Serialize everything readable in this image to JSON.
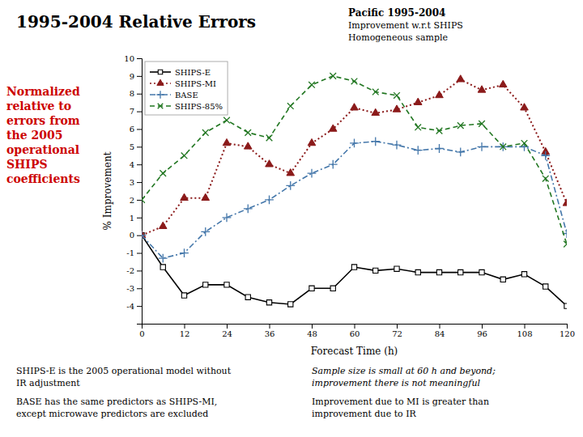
{
  "chart_data": {
    "type": "line",
    "title": "1995-2004 Relative Errors",
    "subtitle": [
      "Pacific 1995-2004",
      "Improvement w.r.t SHIPS",
      "Homogeneous sample"
    ],
    "x_label": "Forecast Time (h)",
    "y_label": "% Improvement",
    "x": [
      0,
      6,
      12,
      18,
      24,
      30,
      36,
      42,
      48,
      54,
      60,
      66,
      72,
      78,
      84,
      90,
      96,
      102,
      108,
      114,
      120
    ],
    "xlim": [
      0,
      120
    ],
    "xticks": [
      0,
      12,
      24,
      36,
      48,
      60,
      72,
      84,
      96,
      108,
      120
    ],
    "ylim": [
      -5,
      10
    ],
    "yticks": [
      -4,
      -3,
      -2,
      -1,
      0,
      1,
      2,
      3,
      4,
      5,
      6,
      7,
      8,
      9,
      10
    ],
    "grid": false,
    "legend": "upper left",
    "series": [
      {
        "name": "SHIPS-E",
        "color": "#000000",
        "marker": "square",
        "line_style": "solid",
        "values": [
          0.0,
          -1.8,
          -3.4,
          -2.8,
          -2.8,
          -3.5,
          -3.8,
          -3.9,
          -3.0,
          -3.0,
          -1.8,
          -2.0,
          -1.9,
          -2.1,
          -2.1,
          -2.1,
          -2.1,
          -2.5,
          -2.2,
          -2.9,
          -4.0
        ]
      },
      {
        "name": "SHIPS-MI",
        "color": "#8b1a1a",
        "marker": "triangle",
        "line_style": "dotted",
        "values": [
          0.0,
          0.5,
          2.1,
          2.1,
          5.2,
          5.0,
          4.0,
          3.5,
          5.2,
          6.0,
          7.2,
          6.9,
          7.1,
          7.5,
          7.9,
          8.8,
          8.2,
          8.5,
          7.2,
          4.7,
          1.8
        ]
      },
      {
        "name": "BASE",
        "color": "#4477aa",
        "marker": "plus",
        "line_style": "dashdot",
        "values": [
          0.0,
          -1.3,
          -1.0,
          0.2,
          1.0,
          1.5,
          2.0,
          2.8,
          3.5,
          4.0,
          5.2,
          5.3,
          5.1,
          4.8,
          4.9,
          4.7,
          5.0,
          5.0,
          5.0,
          4.5,
          0.1
        ]
      },
      {
        "name": "SHIPS-85%",
        "color": "#227722",
        "marker": "cross",
        "line_style": "dashed",
        "values": [
          2.0,
          3.5,
          4.5,
          5.8,
          6.5,
          5.8,
          5.5,
          7.3,
          8.5,
          9.0,
          8.7,
          8.1,
          7.9,
          6.1,
          5.9,
          6.2,
          6.3,
          5.0,
          5.2,
          3.2,
          -0.5
        ]
      }
    ],
    "annotations": [
      {
        "text": [
          "Normalized",
          "relative to",
          "errors from",
          "the 2005",
          "operational",
          "SHIPS",
          "coefficients"
        ],
        "color": "#cc0000"
      },
      {
        "text": [
          "SHIPS-E is the 2005 operational model without",
          "IR adjustment"
        ]
      },
      {
        "text": [
          "BASE has the same predictors as SHIPS-MI,",
          "except microwave predictors are excluded"
        ]
      },
      {
        "text": [
          "Sample size is small at 60 h and beyond;",
          "improvement there is not meaningful"
        ]
      },
      {
        "text": [
          "Improvement due to MI is greater than",
          "improvement due to IR"
        ]
      }
    ]
  }
}
